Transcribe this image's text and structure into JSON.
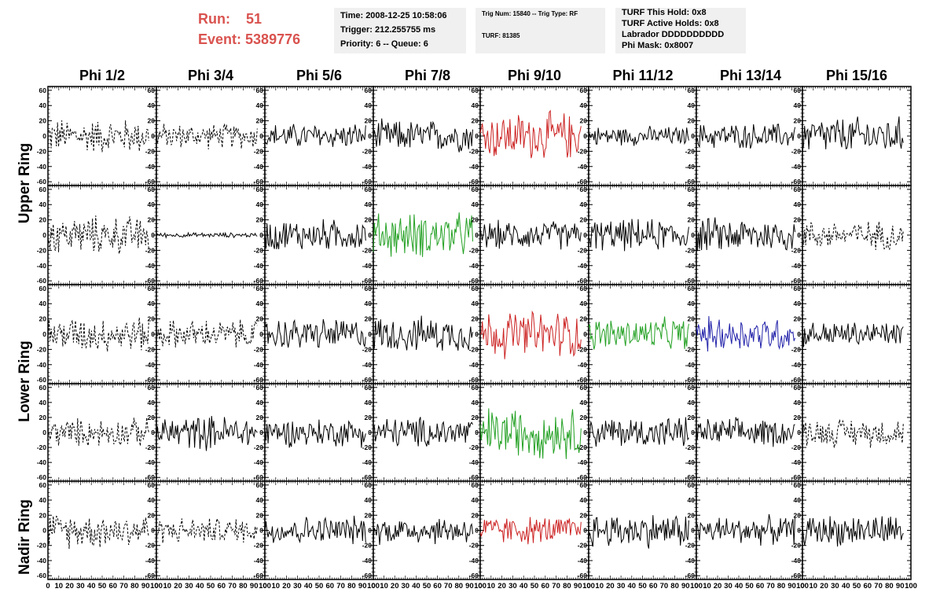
{
  "header": {
    "run_label": "Run:",
    "run_value": "51",
    "event_label": "Event:",
    "event_value": "5389776"
  },
  "time_panel": {
    "time": "Time: 2008-12-25 10:58:06",
    "trigger": "Trigger: 212.255755 ms",
    "priority": "Priority: 6 -- Queue: 6"
  },
  "trig_panel": {
    "trig": "Trig Num: 15840 -- Trig Type: RF",
    "turf": "TURF: 81385"
  },
  "turf_panel": {
    "this_hold": "TURF This Hold: 0x8",
    "active_holds": "TURF Active Holds: 0x8",
    "labrador": "Labrador DDDDDDDDDD",
    "phi_mask": "Phi Mask: 0x8007"
  },
  "columns": [
    "Phi 1/2",
    "Phi 3/4",
    "Phi 5/6",
    "Phi 7/8",
    "Phi 9/10",
    "Phi 11/12",
    "Phi 13/14",
    "Phi 15/16"
  ],
  "row_labels": {
    "upper": "Upper Ring",
    "lower": "Lower Ring",
    "nadir": "Nadir Ring"
  },
  "axes": {
    "y_ticks": [
      "60",
      "40",
      "20",
      "0",
      "-20",
      "-40",
      "-60"
    ],
    "x_ticks": [
      "0",
      "10",
      "20",
      "30",
      "40",
      "50",
      "60",
      "70",
      "80",
      "90",
      "100"
    ],
    "y_range": [
      -65,
      65
    ],
    "x_range": [
      0,
      100
    ]
  },
  "colors": {
    "black": "#000000",
    "red": "#cc2222",
    "green": "#22a022",
    "blue": "#2222aa"
  },
  "chart_data": {
    "type": "line",
    "description_rows": [
      "upper-1",
      "upper-2",
      "lower-1",
      "lower-2",
      "nadir"
    ],
    "panels": [
      [
        {
          "style": "dashed",
          "color": "black",
          "amp": 22
        },
        {
          "style": "dashed",
          "color": "black",
          "amp": 16
        },
        {
          "style": "solid",
          "color": "black",
          "amp": 16
        },
        {
          "style": "solid",
          "color": "black",
          "amp": 20
        },
        {
          "style": "solid",
          "color": "red",
          "amp": 30
        },
        {
          "style": "solid",
          "color": "black",
          "amp": 12
        },
        {
          "style": "solid",
          "color": "black",
          "amp": 16
        },
        {
          "style": "solid",
          "color": "black",
          "amp": 24
        }
      ],
      [
        {
          "style": "dashed",
          "color": "black",
          "amp": 24
        },
        {
          "style": "solid",
          "color": "black",
          "amp": 3
        },
        {
          "style": "solid",
          "color": "black",
          "amp": 20
        },
        {
          "style": "solid",
          "color": "green",
          "amp": 28
        },
        {
          "style": "solid",
          "color": "black",
          "amp": 18
        },
        {
          "style": "solid",
          "color": "black",
          "amp": 20
        },
        {
          "style": "solid",
          "color": "black",
          "amp": 22
        },
        {
          "style": "dashed",
          "color": "black",
          "amp": 18
        }
      ],
      [
        {
          "style": "dashed",
          "color": "black",
          "amp": 22
        },
        {
          "style": "dashed",
          "color": "black",
          "amp": 18
        },
        {
          "style": "solid",
          "color": "black",
          "amp": 20
        },
        {
          "style": "solid",
          "color": "black",
          "amp": 22
        },
        {
          "style": "solid",
          "color": "red",
          "amp": 30
        },
        {
          "style": "solid",
          "color": "green",
          "amp": 20
        },
        {
          "style": "solid",
          "color": "blue",
          "amp": 22
        },
        {
          "style": "solid",
          "color": "black",
          "amp": 16
        }
      ],
      [
        {
          "style": "dashed",
          "color": "black",
          "amp": 18
        },
        {
          "style": "solid",
          "color": "black",
          "amp": 22
        },
        {
          "style": "solid",
          "color": "black",
          "amp": 18
        },
        {
          "style": "solid",
          "color": "black",
          "amp": 20
        },
        {
          "style": "solid",
          "color": "green",
          "amp": 32
        },
        {
          "style": "solid",
          "color": "black",
          "amp": 20
        },
        {
          "style": "solid",
          "color": "black",
          "amp": 18
        },
        {
          "style": "dashed",
          "color": "black",
          "amp": 18
        }
      ],
      [
        {
          "style": "dashed",
          "color": "black",
          "amp": 22
        },
        {
          "style": "dashed",
          "color": "black",
          "amp": 16
        },
        {
          "style": "solid",
          "color": "black",
          "amp": 18
        },
        {
          "style": "solid",
          "color": "black",
          "amp": 18
        },
        {
          "style": "solid",
          "color": "red",
          "amp": 18
        },
        {
          "style": "solid",
          "color": "black",
          "amp": 22
        },
        {
          "style": "solid",
          "color": "black",
          "amp": 18
        },
        {
          "style": "solid",
          "color": "black",
          "amp": 20
        }
      ]
    ]
  }
}
